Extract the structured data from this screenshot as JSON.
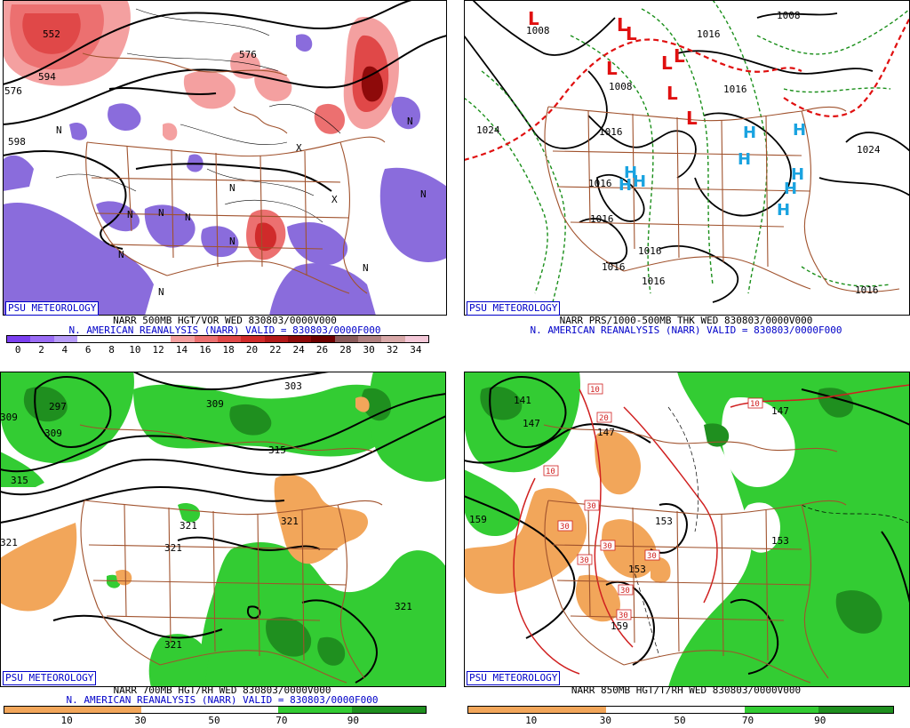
{
  "panels": [
    {
      "badge": "PSU METEOROLOGY",
      "caption1": "NARR 500MB HGT/VOR WED 830803/0000V000",
      "caption2": "N. AMERICAN REANALYSIS (NARR) VALID = 830803/0000F000",
      "scale_labels": [
        "0",
        "2",
        "4",
        "6",
        "8",
        "10",
        "12",
        "14",
        "16",
        "18",
        "20",
        "22",
        "24",
        "26",
        "28",
        "30",
        "32",
        "34"
      ],
      "scale_colors": [
        "#7b3ff0",
        "#9a6cf5",
        "#b79cf8",
        "#ffffff",
        "#ffffff",
        "#ffffff",
        "#ffffff",
        "#f4a0a0",
        "#ec7070",
        "#e04848",
        "#d02a2a",
        "#b21818",
        "#8e0a0a",
        "#6e0000",
        "#8a5a5a",
        "#b08080",
        "#d8a8a8",
        "#f4c8d8"
      ],
      "contour_labels": [
        "552",
        "576",
        "576",
        "594",
        "598"
      ]
    },
    {
      "badge": "PSU METEOROLOGY",
      "caption1": "NARR PRS/1000-500MB THK WED 830803/0000V000",
      "caption2": "N. AMERICAN REANALYSIS (NARR) VALID = 830803/0000F000",
      "pressure_labels": [
        "1008",
        "1008",
        "1008",
        "1016",
        "1016",
        "1016",
        "1016",
        "1024",
        "1024",
        "1016",
        "1016",
        "1016",
        "1016",
        "1016"
      ],
      "low_symbol": "L",
      "high_symbol": "H"
    },
    {
      "badge": "PSU METEOROLOGY",
      "caption1": "NARR 700MB HGT/RH WED 830803/0000V000",
      "caption2": "N. AMERICAN REANALYSIS (NARR) VALID = 830803/0000F000",
      "scale_labels": [
        "10",
        "30",
        "50",
        "70",
        "90"
      ],
      "contour_labels": [
        "309",
        "297",
        "309",
        "303",
        "309",
        "315",
        "315",
        "321",
        "321",
        "321",
        "321",
        "321",
        "321"
      ]
    },
    {
      "badge": "PSU METEOROLOGY",
      "caption1": "NARR 850MB HGT/T/RH WED 830803/0000V000",
      "scale_labels": [
        "10",
        "30",
        "50",
        "70",
        "90"
      ],
      "contour_labels": [
        "141",
        "147",
        "147",
        "147",
        "153",
        "153",
        "153",
        "159",
        "159"
      ],
      "temp_labels": [
        "10",
        "20",
        "10",
        "30",
        "30",
        "30",
        "30",
        "30",
        "30",
        "30",
        "10"
      ]
    }
  ],
  "colors": {
    "dry": "#f2a65a",
    "moist": "#33cc33",
    "moist_dark": "#1f8f1f",
    "border": "#a0522d",
    "label_blue": "#0000c8",
    "low_red": "#e01010",
    "high_cyan": "#1aa3e0",
    "neg_vort": "#8a6cdc",
    "pos_vort": "#e23c3c"
  }
}
